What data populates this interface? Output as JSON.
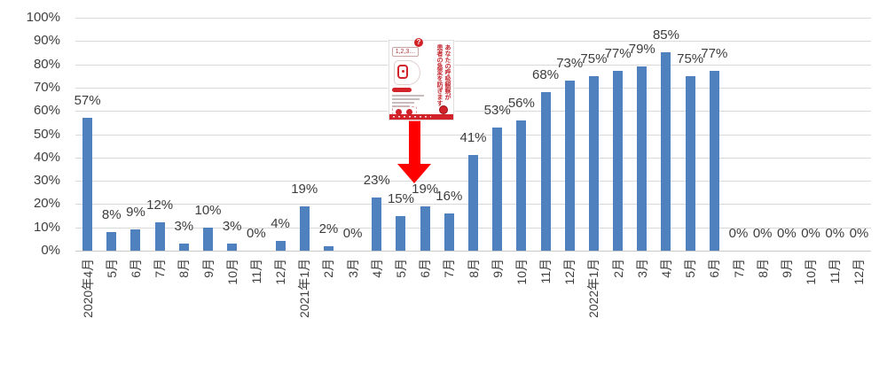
{
  "chart_data": {
    "type": "bar",
    "title": "",
    "xlabel": "",
    "ylabel": "",
    "ylim": [
      0,
      100
    ],
    "grid": true,
    "legend": false,
    "bar_color": "#4E81BD",
    "gridline_color": "#D9D9D9",
    "y_ticks": [
      "0%",
      "10%",
      "20%",
      "30%",
      "40%",
      "50%",
      "60%",
      "70%",
      "80%",
      "90%",
      "100%"
    ],
    "categories": [
      "2020年4月",
      "5月",
      "6月",
      "7月",
      "8月",
      "9月",
      "10月",
      "11月",
      "12月",
      "2021年1月",
      "2月",
      "3月",
      "4月",
      "5月",
      "6月",
      "7月",
      "8月",
      "9月",
      "10月",
      "11月",
      "12月",
      "2022年1月",
      "2月",
      "3月",
      "4月",
      "5月",
      "6月",
      "7月",
      "8月",
      "9月",
      "10月",
      "11月",
      "12月"
    ],
    "values": [
      57,
      8,
      9,
      12,
      3,
      10,
      3,
      0,
      4,
      19,
      2,
      0,
      23,
      15,
      19,
      16,
      41,
      53,
      56,
      68,
      73,
      75,
      77,
      79,
      85,
      75,
      77,
      0,
      0,
      0,
      0,
      0,
      0
    ],
    "data_labels": [
      "57%",
      "8%",
      "9%",
      "12%",
      "3%",
      "10%",
      "3%",
      "0%",
      "4%",
      "19%",
      "2%",
      "0%",
      "23%",
      "15%",
      "19%",
      "16%",
      "41%",
      "53%",
      "56%",
      "68%",
      "73%",
      "75%",
      "77%",
      "79%",
      "85%",
      "75%",
      "77%",
      "0%",
      "0%",
      "0%",
      "0%",
      "0%",
      "0%"
    ]
  },
  "annotation": {
    "arrow": {
      "color": "#FE0000",
      "points_at_category": "2021年6月"
    },
    "poster": {
      "counting_text": "1,2,3…",
      "badge": "?",
      "vertical_text": [
        "あなたの呼吸観察が",
        "患者の急変を防ぎます。"
      ]
    }
  }
}
